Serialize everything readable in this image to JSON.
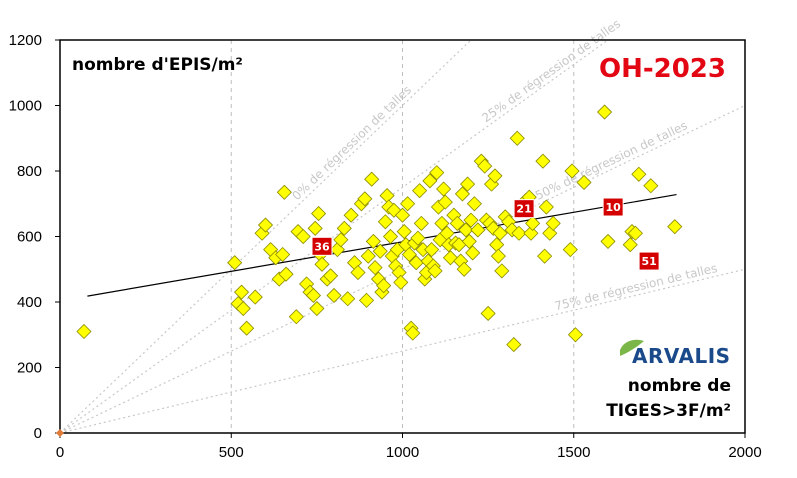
{
  "chart_data": {
    "type": "scatter",
    "title": "OH-2023",
    "ylabel": "nombre d'EPIS/m²",
    "xlabel_line1": "nombre de",
    "xlabel_line2": "TIGES>3F/m²",
    "brand": "ARVALIS",
    "xlim": [
      0,
      2000
    ],
    "ylim": [
      0,
      1200
    ],
    "x_ticks": [
      0,
      500,
      1000,
      1500,
      2000
    ],
    "y_ticks": [
      0,
      200,
      400,
      600,
      800,
      1000,
      1200
    ],
    "grid": true,
    "colors": {
      "title": "#e30613",
      "points_fill": "#ffff00",
      "points_edge": "#8a8a00",
      "highlight_fill": "#d40000",
      "trend": "#000000",
      "origin": "#e07b39",
      "brand_text": "#1a4a8a",
      "brand_leaf": "#7ab648"
    },
    "reference_lines": [
      {
        "label": "0% de régression de talles",
        "slope": 1.0
      },
      {
        "label": "25% de régression de talles",
        "slope": 0.75
      },
      {
        "label": "50% de régression de talles",
        "slope": 0.5
      },
      {
        "label": "75% de régression de talles",
        "slope": 0.25
      }
    ],
    "trendline": {
      "x": [
        80,
        1800
      ],
      "y": [
        418,
        728
      ]
    },
    "origin_point": {
      "x": 0,
      "y": 0
    },
    "highlighted": [
      {
        "label": "36",
        "x": 765,
        "y": 570
      },
      {
        "label": "21",
        "x": 1355,
        "y": 685
      },
      {
        "label": "10",
        "x": 1615,
        "y": 690
      },
      {
        "label": "51",
        "x": 1720,
        "y": 525
      }
    ],
    "points": [
      [
        70,
        310
      ],
      [
        510,
        520
      ],
      [
        520,
        395
      ],
      [
        530,
        430
      ],
      [
        535,
        380
      ],
      [
        545,
        320
      ],
      [
        570,
        415
      ],
      [
        590,
        610
      ],
      [
        600,
        635
      ],
      [
        615,
        560
      ],
      [
        630,
        535
      ],
      [
        640,
        470
      ],
      [
        650,
        545
      ],
      [
        655,
        735
      ],
      [
        660,
        485
      ],
      [
        690,
        355
      ],
      [
        695,
        615
      ],
      [
        710,
        600
      ],
      [
        720,
        455
      ],
      [
        730,
        430
      ],
      [
        740,
        420
      ],
      [
        745,
        625
      ],
      [
        750,
        380
      ],
      [
        755,
        670
      ],
      [
        760,
        545
      ],
      [
        765,
        515
      ],
      [
        780,
        470
      ],
      [
        790,
        480
      ],
      [
        800,
        420
      ],
      [
        810,
        560
      ],
      [
        820,
        590
      ],
      [
        830,
        625
      ],
      [
        840,
        410
      ],
      [
        850,
        665
      ],
      [
        860,
        520
      ],
      [
        870,
        490
      ],
      [
        880,
        700
      ],
      [
        890,
        715
      ],
      [
        895,
        405
      ],
      [
        900,
        540
      ],
      [
        910,
        775
      ],
      [
        915,
        585
      ],
      [
        920,
        505
      ],
      [
        930,
        470
      ],
      [
        935,
        555
      ],
      [
        940,
        430
      ],
      [
        945,
        450
      ],
      [
        950,
        645
      ],
      [
        955,
        725
      ],
      [
        960,
        690
      ],
      [
        965,
        600
      ],
      [
        970,
        540
      ],
      [
        975,
        680
      ],
      [
        980,
        510
      ],
      [
        985,
        560
      ],
      [
        990,
        490
      ],
      [
        995,
        460
      ],
      [
        1000,
        665
      ],
      [
        1005,
        615
      ],
      [
        1010,
        575
      ],
      [
        1015,
        700
      ],
      [
        1020,
        545
      ],
      [
        1025,
        320
      ],
      [
        1030,
        305
      ],
      [
        1035,
        580
      ],
      [
        1040,
        520
      ],
      [
        1045,
        595
      ],
      [
        1050,
        740
      ],
      [
        1055,
        640
      ],
      [
        1060,
        560
      ],
      [
        1065,
        470
      ],
      [
        1070,
        490
      ],
      [
        1075,
        525
      ],
      [
        1080,
        770
      ],
      [
        1085,
        560
      ],
      [
        1090,
        510
      ],
      [
        1095,
        495
      ],
      [
        1100,
        795
      ],
      [
        1105,
        690
      ],
      [
        1110,
        590
      ],
      [
        1115,
        640
      ],
      [
        1120,
        745
      ],
      [
        1125,
        705
      ],
      [
        1130,
        610
      ],
      [
        1135,
        575
      ],
      [
        1140,
        535
      ],
      [
        1150,
        665
      ],
      [
        1155,
        580
      ],
      [
        1160,
        640
      ],
      [
        1165,
        575
      ],
      [
        1170,
        525
      ],
      [
        1175,
        730
      ],
      [
        1180,
        500
      ],
      [
        1185,
        620
      ],
      [
        1190,
        760
      ],
      [
        1195,
        585
      ],
      [
        1200,
        650
      ],
      [
        1205,
        550
      ],
      [
        1210,
        700
      ],
      [
        1220,
        620
      ],
      [
        1230,
        830
      ],
      [
        1240,
        815
      ],
      [
        1245,
        650
      ],
      [
        1250,
        365
      ],
      [
        1255,
        640
      ],
      [
        1260,
        760
      ],
      [
        1265,
        625
      ],
      [
        1270,
        785
      ],
      [
        1275,
        575
      ],
      [
        1280,
        540
      ],
      [
        1285,
        610
      ],
      [
        1290,
        495
      ],
      [
        1300,
        660
      ],
      [
        1310,
        645
      ],
      [
        1320,
        620
      ],
      [
        1325,
        270
      ],
      [
        1335,
        900
      ],
      [
        1340,
        610
      ],
      [
        1350,
        680
      ],
      [
        1360,
        710
      ],
      [
        1370,
        720
      ],
      [
        1375,
        610
      ],
      [
        1380,
        640
      ],
      [
        1410,
        830
      ],
      [
        1415,
        540
      ],
      [
        1420,
        690
      ],
      [
        1430,
        610
      ],
      [
        1440,
        640
      ],
      [
        1490,
        560
      ],
      [
        1495,
        800
      ],
      [
        1505,
        300
      ],
      [
        1530,
        765
      ],
      [
        1590,
        980
      ],
      [
        1600,
        585
      ],
      [
        1665,
        575
      ],
      [
        1670,
        615
      ],
      [
        1680,
        610
      ],
      [
        1690,
        790
      ],
      [
        1725,
        755
      ],
      [
        1795,
        630
      ]
    ]
  }
}
